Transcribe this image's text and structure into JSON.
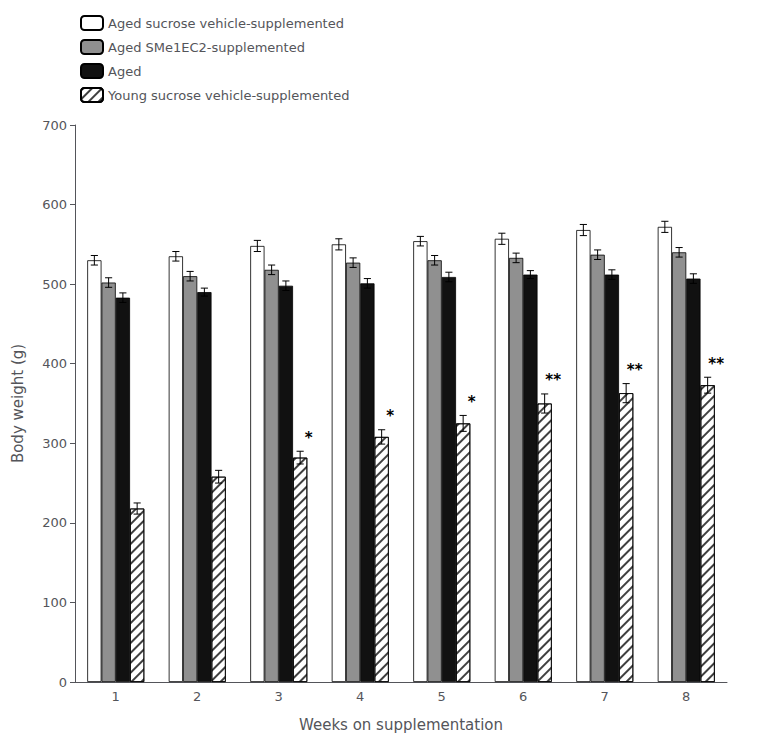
{
  "chart_data": {
    "type": "bar",
    "xlabel": "Weeks on supplementation",
    "ylabel": "Body weight (g)",
    "categories": [
      1,
      2,
      3,
      4,
      5,
      6,
      7,
      8
    ],
    "series": [
      {
        "name": "Aged sucrose vehicle-supplemented",
        "color": "white",
        "values": [
          530,
          535,
          548,
          550,
          554,
          557,
          568,
          572
        ],
        "errors": [
          6,
          6,
          7,
          7,
          6,
          7,
          7,
          7
        ]
      },
      {
        "name": "Aged SMe1EC2-supplemented",
        "color": "#909090",
        "values": [
          502,
          510,
          518,
          527,
          530,
          533,
          537,
          540
        ],
        "errors": [
          6,
          6,
          6,
          6,
          6,
          6,
          6,
          6
        ]
      },
      {
        "name": "Aged",
        "color": "#111111",
        "values": [
          483,
          490,
          498,
          501,
          509,
          512,
          512,
          507
        ],
        "errors": [
          6,
          5,
          6,
          6,
          6,
          5,
          6,
          6
        ]
      },
      {
        "name": "Young sucrose vehicle-supplemented",
        "color": "white",
        "values": [
          218,
          258,
          282,
          308,
          325,
          350,
          363,
          373
        ],
        "errors": [
          7,
          8,
          8,
          9,
          10,
          12,
          12,
          10
        ],
        "significance": [
          null,
          null,
          "*",
          "*",
          "*",
          "**",
          "**",
          "**"
        ]
      }
    ],
    "ylim": [
      0,
      700
    ],
    "yticks": [
      0,
      100,
      200,
      300,
      400,
      500,
      600,
      700
    ],
    "grid": false,
    "legend": "upper left"
  }
}
